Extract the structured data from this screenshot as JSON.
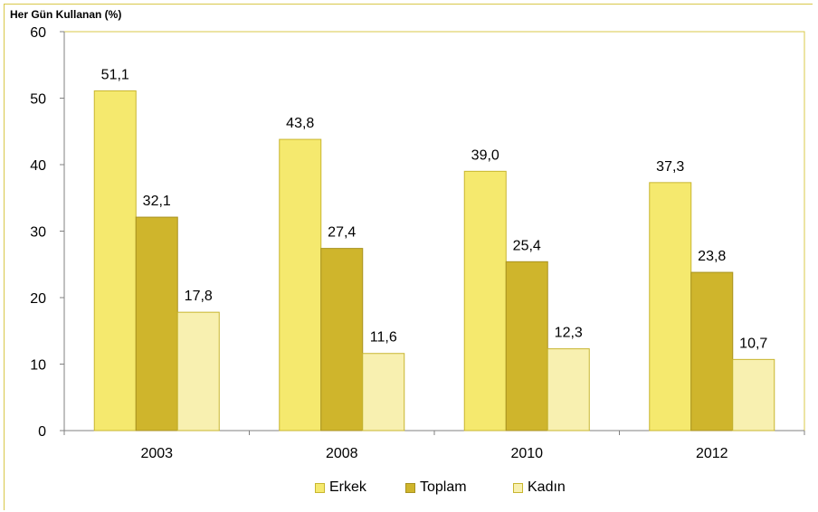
{
  "chart_data": {
    "type": "bar",
    "ylabel": "Her Gün Kullanan (%)",
    "categories": [
      "2003",
      "2008",
      "2010",
      "2012"
    ],
    "ylim": [
      0,
      60
    ],
    "yticks": [
      0,
      10,
      20,
      30,
      40,
      50,
      60
    ],
    "series": [
      {
        "name": "Erkek",
        "color": "#f5e96e",
        "stroke": "#c8b630",
        "values": [
          51.1,
          43.8,
          39.0,
          37.3
        ],
        "labels": [
          "51,1",
          "43,8",
          "39,0",
          "37,3"
        ]
      },
      {
        "name": "Toplam",
        "color": "#cfb52c",
        "stroke": "#a89220",
        "values": [
          32.1,
          27.4,
          25.4,
          23.8
        ],
        "labels": [
          "32,1",
          "27,4",
          "25,4",
          "23,8"
        ]
      },
      {
        "name": "Kadın",
        "color": "#f8f0b0",
        "stroke": "#c8b630",
        "values": [
          17.8,
          11.6,
          12.3,
          10.7
        ],
        "labels": [
          "17,8",
          "11,6",
          "12,3",
          "10,7"
        ]
      }
    ],
    "legend_position": "bottom",
    "grid": false
  }
}
